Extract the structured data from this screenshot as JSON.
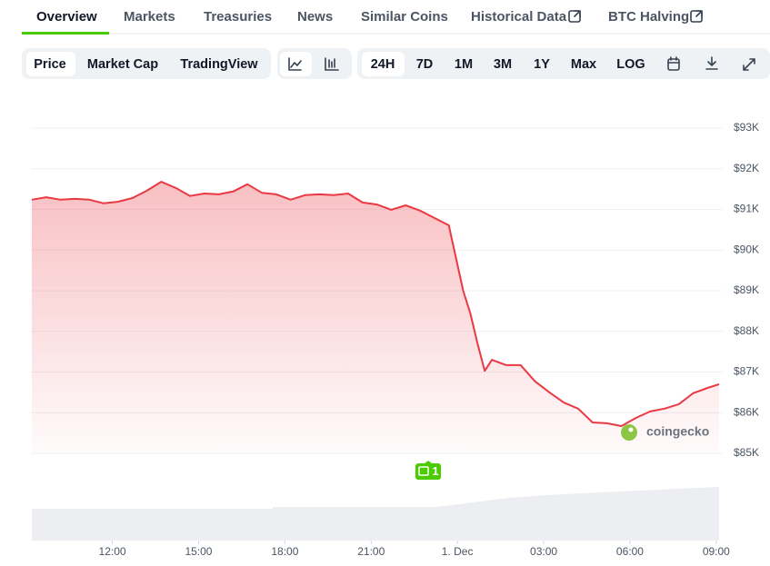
{
  "tabs": [
    "Overview",
    "Markets",
    "Treasuries",
    "News",
    "Similar Coins",
    "Historical Data",
    "BTC Halving"
  ],
  "chart_type_buttons": [
    "Price",
    "Market Cap",
    "TradingView"
  ],
  "range_buttons": [
    "24H",
    "7D",
    "1M",
    "3M",
    "1Y",
    "Max",
    "LOG"
  ],
  "chart_data": {
    "type": "area",
    "watermark": "coingecko",
    "annotation": "1",
    "x": [
      9.2,
      9.7,
      10.2,
      10.7,
      11.2,
      11.7,
      12.2,
      12.7,
      13.2,
      13.7,
      14.2,
      14.7,
      15.2,
      15.7,
      16.2,
      16.7,
      17.2,
      17.7,
      18.2,
      18.7,
      19.2,
      19.7,
      20.2,
      20.7,
      21.2,
      21.7,
      22.2,
      22.7,
      23.2,
      23.7,
      24.2,
      24.45,
      24.7,
      24.95,
      25.2,
      25.7,
      26.2,
      26.7,
      27.2,
      27.7,
      28.2,
      28.7,
      29.2,
      29.7,
      30.2,
      30.7,
      31.2,
      31.7,
      32.2,
      32.7,
      33.1
    ],
    "series": [
      {
        "name": "Price",
        "color": "#ea3943",
        "values": [
          91240,
          91300,
          91240,
          91260,
          91240,
          91150,
          91190,
          91280,
          91460,
          91680,
          91530,
          91330,
          91390,
          91370,
          91440,
          91620,
          91410,
          91370,
          91240,
          91350,
          91370,
          91350,
          91390,
          91170,
          91120,
          90990,
          91100,
          90970,
          90790,
          90610,
          89000,
          88440,
          87700,
          87030,
          87300,
          87170,
          87170,
          86770,
          86500,
          86250,
          86100,
          85760,
          85740,
          85670,
          85870,
          86030,
          86100,
          86210,
          86480,
          86610,
          86700
        ]
      }
    ],
    "xlim": [
      9.2,
      33.1
    ],
    "xticks": [
      {
        "value": 12,
        "label": "12:00"
      },
      {
        "value": 15,
        "label": "15:00"
      },
      {
        "value": 18,
        "label": "18:00"
      },
      {
        "value": 21,
        "label": "21:00"
      },
      {
        "value": 24,
        "label": "1. Dec"
      },
      {
        "value": 27,
        "label": "03:00"
      },
      {
        "value": 30,
        "label": "06:00"
      },
      {
        "value": 33,
        "label": "09:00"
      }
    ],
    "ylim": [
      85000,
      93000
    ],
    "yticks": [
      {
        "value": 85000,
        "label": "$85K"
      },
      {
        "value": 86000,
        "label": "$86K"
      },
      {
        "value": 87000,
        "label": "$87K"
      },
      {
        "value": 88000,
        "label": "$88K"
      },
      {
        "value": 89000,
        "label": "$89K"
      },
      {
        "value": 90000,
        "label": "$90K"
      },
      {
        "value": 91000,
        "label": "$91K"
      },
      {
        "value": 92000,
        "label": "$92K"
      },
      {
        "value": 93000,
        "label": "$93K"
      }
    ],
    "grid": true
  }
}
